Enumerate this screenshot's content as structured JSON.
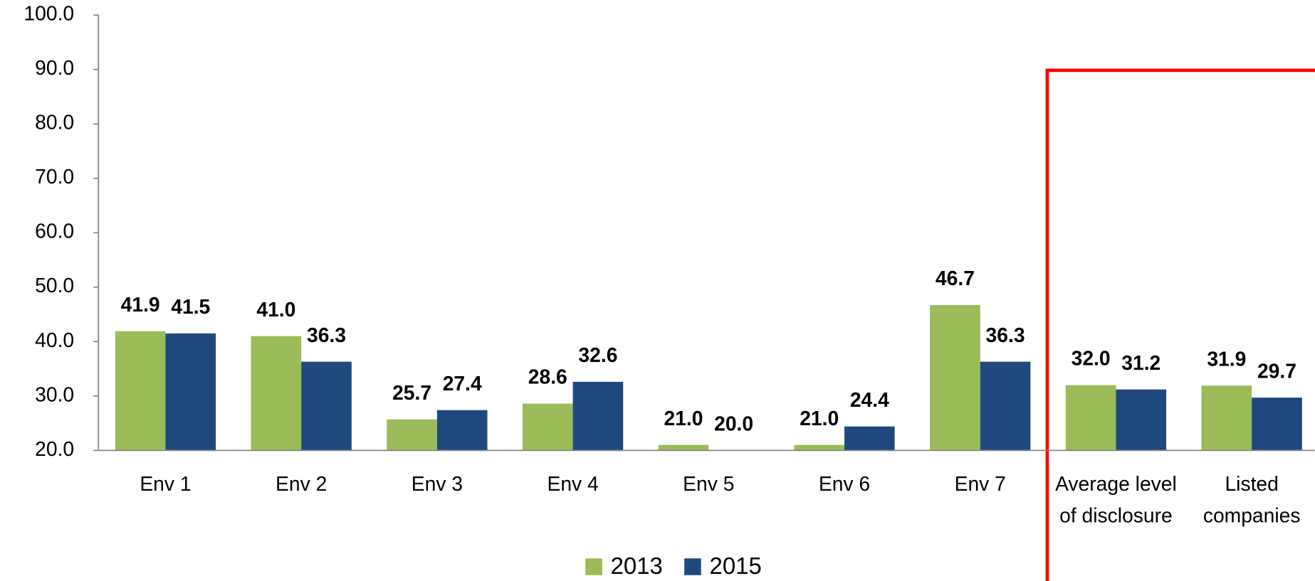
{
  "chart_data": {
    "type": "bar",
    "categories": [
      "Env 1",
      "Env 2",
      "Env 3",
      "Env 4",
      "Env 5",
      "Env 6",
      "Env 7",
      "Average level of disclosure",
      "Listed companies"
    ],
    "series": [
      {
        "name": "2013",
        "color": "#9bbb59",
        "values": [
          41.9,
          41.0,
          25.7,
          28.6,
          21.0,
          21.0,
          46.7,
          32.0,
          31.9
        ],
        "value_labels": [
          "41.9",
          "41.0",
          "25.7",
          "28.6",
          "21.0",
          "21.0",
          "46.7",
          "32.0",
          "31.9"
        ]
      },
      {
        "name": "2015",
        "color": "#1f497d",
        "values": [
          41.5,
          36.3,
          27.4,
          32.6,
          20.0,
          24.4,
          36.3,
          31.2,
          29.7
        ],
        "value_labels": [
          "41.5",
          "36.3",
          "27.4",
          "32.6",
          "20.0",
          "24.4",
          "36.3",
          "31.2",
          "29.7"
        ]
      }
    ],
    "ylim": [
      20,
      100
    ],
    "yticks": [
      {
        "value": 20,
        "label": "20.0"
      },
      {
        "value": 30,
        "label": "30.0"
      },
      {
        "value": 40,
        "label": "40.0"
      },
      {
        "value": 50,
        "label": "50.0"
      },
      {
        "value": 60,
        "label": "60.0"
      },
      {
        "value": 70,
        "label": "70.0"
      },
      {
        "value": 80,
        "label": "80.0"
      },
      {
        "value": 90,
        "label": "90.0"
      },
      {
        "value": 100,
        "label": "100.0"
      }
    ],
    "grid": false,
    "legend": "bottom"
  }
}
